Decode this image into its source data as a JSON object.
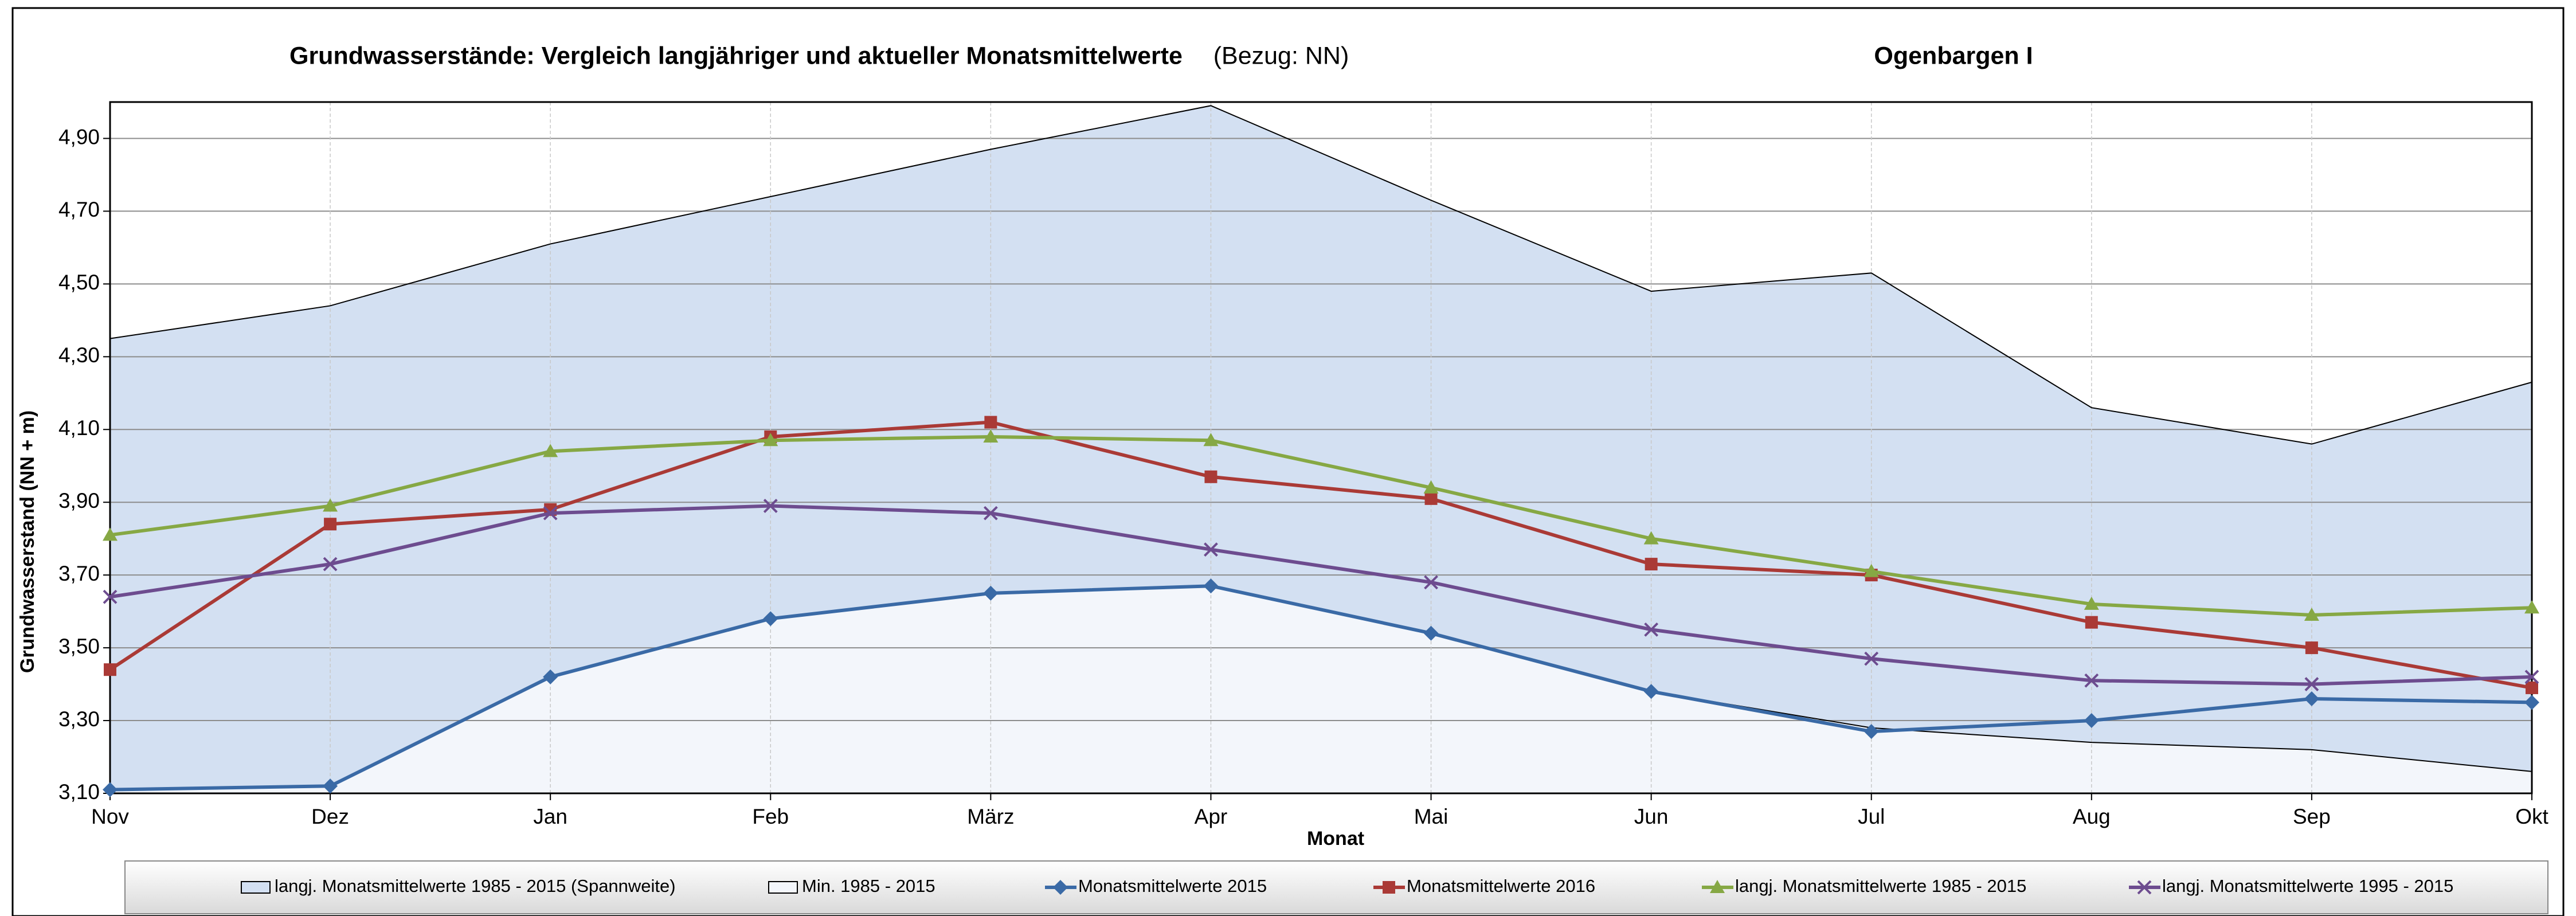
{
  "chart_data": {
    "type": "line",
    "title": "Grundwasserstände: Vergleich langjähriger und aktueller Monatsmittelwerte",
    "title_reference": "(Bezug: NN)",
    "title_station": "Ogenbargen I",
    "x_label": "Monat",
    "y_label": "Grundwasserstand (NN + m)",
    "categories": [
      "Nov",
      "Dez",
      "Jan",
      "Feb",
      "März",
      "Apr",
      "Mai",
      "Jun",
      "Jul",
      "Aug",
      "Sep",
      "Okt"
    ],
    "ylim": [
      3.1,
      5.0
    ],
    "yticks": [
      {
        "value": 3.1,
        "label": "3,10"
      },
      {
        "value": 3.3,
        "label": "3,30"
      },
      {
        "value": 3.5,
        "label": "3,50"
      },
      {
        "value": 3.7,
        "label": "3,70"
      },
      {
        "value": 3.9,
        "label": "3,90"
      },
      {
        "value": 4.1,
        "label": "4,10"
      },
      {
        "value": 4.3,
        "label": "4,30"
      },
      {
        "value": 4.5,
        "label": "4,50"
      },
      {
        "value": 4.7,
        "label": "4,70"
      },
      {
        "value": 4.9,
        "label": "4,90"
      }
    ],
    "grid": true,
    "legend": "bottom",
    "series": [
      {
        "name": "langj. Monatsmittelwerte 1985 - 2015 (Spannweite)",
        "type": "area",
        "color": "#d3e0f2",
        "values": [
          4.35,
          4.44,
          4.61,
          4.74,
          4.87,
          4.99,
          4.73,
          4.48,
          4.53,
          4.16,
          4.06,
          4.23
        ]
      },
      {
        "name": "Min. 1985 - 2015",
        "type": "area",
        "color": "#f3f6fb",
        "values": [
          3.11,
          3.12,
          3.42,
          3.58,
          3.65,
          3.67,
          3.54,
          3.38,
          3.28,
          3.24,
          3.22,
          3.16
        ]
      },
      {
        "name": "Monatsmittelwerte 2015",
        "type": "line",
        "color": "#3a6aa6",
        "marker": "diamond",
        "values": [
          3.11,
          3.12,
          3.42,
          3.58,
          3.65,
          3.67,
          3.54,
          3.38,
          3.27,
          3.3,
          3.36,
          3.35
        ]
      },
      {
        "name": "Monatsmittelwerte 2016",
        "type": "line",
        "color": "#aa3a36",
        "marker": "square",
        "values": [
          3.44,
          3.84,
          3.88,
          4.08,
          4.12,
          3.97,
          3.91,
          3.73,
          3.7,
          3.57,
          3.5,
          3.39
        ]
      },
      {
        "name": "langj. Monatsmittelwerte 1985 - 2015",
        "type": "line",
        "color": "#86a844",
        "marker": "triangle",
        "values": [
          3.81,
          3.89,
          4.04,
          4.07,
          4.08,
          4.07,
          3.94,
          3.8,
          3.71,
          3.62,
          3.59,
          3.61
        ]
      },
      {
        "name": "langj. Monatsmittelwerte 1995 - 2015",
        "type": "line",
        "color": "#6d4c8f",
        "marker": "x",
        "values": [
          3.64,
          3.73,
          3.87,
          3.89,
          3.87,
          3.77,
          3.68,
          3.55,
          3.47,
          3.41,
          3.4,
          3.42
        ]
      }
    ]
  }
}
